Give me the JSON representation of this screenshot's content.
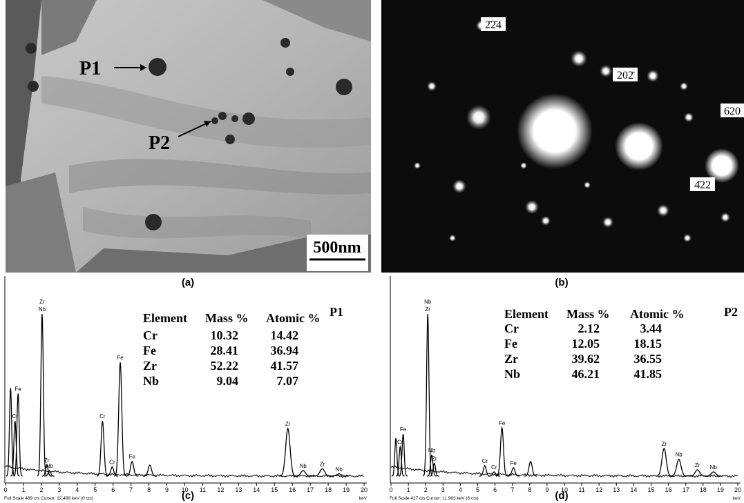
{
  "panels": [
    {
      "label": "(a)",
      "annotations": [
        "P1",
        "P2",
        "500nm"
      ]
    },
    {
      "label": "(b)",
      "annotations": [
        "2̄2̄4",
        "202̄",
        "620",
        "4̄22"
      ]
    },
    {
      "label": "(c)",
      "spectrum": {
        "name": "P1",
        "footer": "Full Scale 489 cts  Cursor: 12.499 keV (0 cts)",
        "unit": "keV",
        "xlim": [
          0,
          20
        ],
        "ylim": [
          0,
          489
        ],
        "xticks": [
          0,
          1,
          2,
          3,
          4,
          5,
          6,
          7,
          8,
          9,
          10,
          11,
          12,
          13,
          14,
          15,
          16,
          17,
          18,
          19,
          20
        ],
        "peaks": [
          {
            "labels": [],
            "x": 0.28,
            "height": 240
          },
          {
            "labels": [
              "Cr"
            ],
            "x": 0.53,
            "height": 150
          },
          {
            "labels": [
              "Fe"
            ],
            "x": 0.7,
            "height": 225
          },
          {
            "labels": [
              "Zr",
              "Nb"
            ],
            "x": 2.04,
            "height": 442
          },
          {
            "labels": [
              "Zr"
            ],
            "x": 2.3,
            "height": 30
          },
          {
            "labels": [
              "Nb"
            ],
            "x": 2.45,
            "height": 15
          },
          {
            "labels": [
              "Cr"
            ],
            "x": 5.41,
            "height": 150
          },
          {
            "labels": [
              "Cr"
            ],
            "x": 5.95,
            "height": 25
          },
          {
            "labels": [
              "Fe"
            ],
            "x": 6.4,
            "height": 310
          },
          {
            "labels": [
              "Fe"
            ],
            "x": 7.06,
            "height": 40
          },
          {
            "labels": [],
            "x": 8.05,
            "height": 30
          },
          {
            "labels": [
              "Zr"
            ],
            "x": 15.75,
            "height": 130
          },
          {
            "labels": [
              "Nb"
            ],
            "x": 16.6,
            "height": 15
          },
          {
            "labels": [
              "Zr"
            ],
            "x": 17.67,
            "height": 20
          },
          {
            "labels": [
              "Nb"
            ],
            "x": 18.6,
            "height": 6
          }
        ],
        "table": {
          "header": [
            "Element",
            "Mass %",
            "Atomic %"
          ],
          "rows": [
            [
              "Cr",
              "10.32",
              "14.42"
            ],
            [
              "Fe",
              "28.41",
              "36.94"
            ],
            [
              "Zr",
              "52.22",
              "41.57"
            ],
            [
              "Nb",
              "9.04",
              "7.07"
            ]
          ]
        }
      }
    },
    {
      "label": "(d)",
      "spectrum": {
        "name": "P2",
        "footer": "Full Scale 427 cts  Cursor: 11.963 keV (6 cts)",
        "unit": "keV",
        "xlim": [
          0,
          20
        ],
        "ylim": [
          0,
          427
        ],
        "xticks": [
          0,
          1,
          2,
          3,
          4,
          5,
          6,
          7,
          8,
          9,
          10,
          11,
          12,
          13,
          14,
          15,
          16,
          17,
          18,
          19,
          20
        ],
        "peaks": [
          {
            "labels": [],
            "x": 0.28,
            "height": 90
          },
          {
            "labels": [
              "Cr"
            ],
            "x": 0.53,
            "height": 70
          },
          {
            "labels": [
              "Fe"
            ],
            "x": 0.7,
            "height": 100
          },
          {
            "labels": [
              "Nb",
              "Zr"
            ],
            "x": 2.12,
            "height": 386
          },
          {
            "labels": [
              "Nb"
            ],
            "x": 2.35,
            "height": 50
          },
          {
            "labels": [
              "Zr"
            ],
            "x": 2.5,
            "height": 30
          },
          {
            "labels": [
              "Cr"
            ],
            "x": 5.41,
            "height": 25
          },
          {
            "labels": [
              "Cr"
            ],
            "x": 5.95,
            "height": 10
          },
          {
            "labels": [
              "Fe"
            ],
            "x": 6.4,
            "height": 115
          },
          {
            "labels": [
              "Fe"
            ],
            "x": 7.06,
            "height": 20
          },
          {
            "labels": [],
            "x": 8.05,
            "height": 35
          },
          {
            "labels": [
              "Zr"
            ],
            "x": 15.75,
            "height": 66
          },
          {
            "labels": [
              "Nb"
            ],
            "x": 16.6,
            "height": 40
          },
          {
            "labels": [
              "Zr"
            ],
            "x": 17.67,
            "height": 15
          },
          {
            "labels": [
              "Nb"
            ],
            "x": 18.6,
            "height": 10
          }
        ],
        "table": {
          "header": [
            "Element",
            "Mass %",
            "Atomic %"
          ],
          "rows": [
            [
              "Cr",
              "2.12",
              "3.44"
            ],
            [
              "Fe",
              "12.05",
              "18.15"
            ],
            [
              "Zr",
              "39.62",
              "36.55"
            ],
            [
              "Nb",
              "46.21",
              "41.85"
            ]
          ]
        }
      }
    }
  ]
}
